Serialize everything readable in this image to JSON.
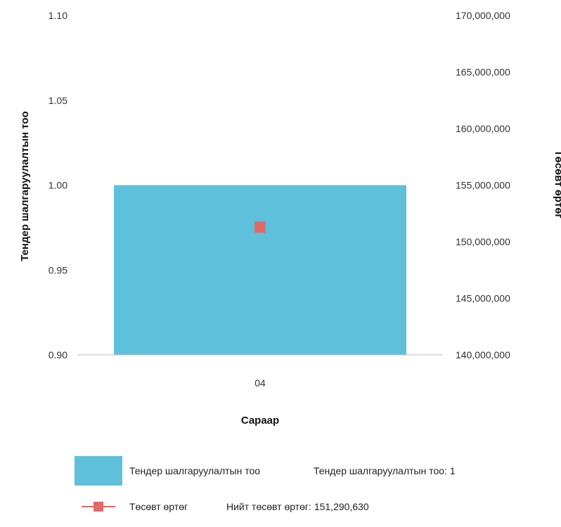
{
  "chart_data": {
    "type": "bar",
    "categories": [
      "04"
    ],
    "series": [
      {
        "name": "Тендер шалгаруулалтын тоо",
        "type": "bar",
        "axis": "left",
        "values": [
          1
        ],
        "color": "#5fc0db"
      },
      {
        "name": "Төсөвт өртөг",
        "type": "line",
        "axis": "right",
        "values": [
          151290630
        ],
        "color": "#e06a6a"
      }
    ],
    "xlabel": "Сараар",
    "ylabel": "Тендер шалгаруулалтын тоо",
    "y2label": "Төсөвт өртөг",
    "ylim": [
      0.9,
      1.1
    ],
    "yticks": [
      "0.90",
      "0.95",
      "1.00",
      "1.05",
      "1.10"
    ],
    "y2lim": [
      140000000,
      170000000
    ],
    "y2ticks": [
      "140,000,000",
      "145,000,000",
      "150,000,000",
      "155,000,000",
      "160,000,000",
      "165,000,000",
      "170,000,000"
    ],
    "grid": false,
    "legend_position": "bottom"
  },
  "legend": {
    "bar_label": "Тендер шалгаруулалтын тоо",
    "bar_summary": "Тендер шалгаруулалтын тоо: 1",
    "line_label": "Төсөвт өртөг",
    "line_summary": "Нийт төсөвт өртөг: 151,290,630"
  },
  "colors": {
    "bar": "#5fc0db",
    "line": "#e06a6a",
    "axis": "#bbbbbb"
  }
}
